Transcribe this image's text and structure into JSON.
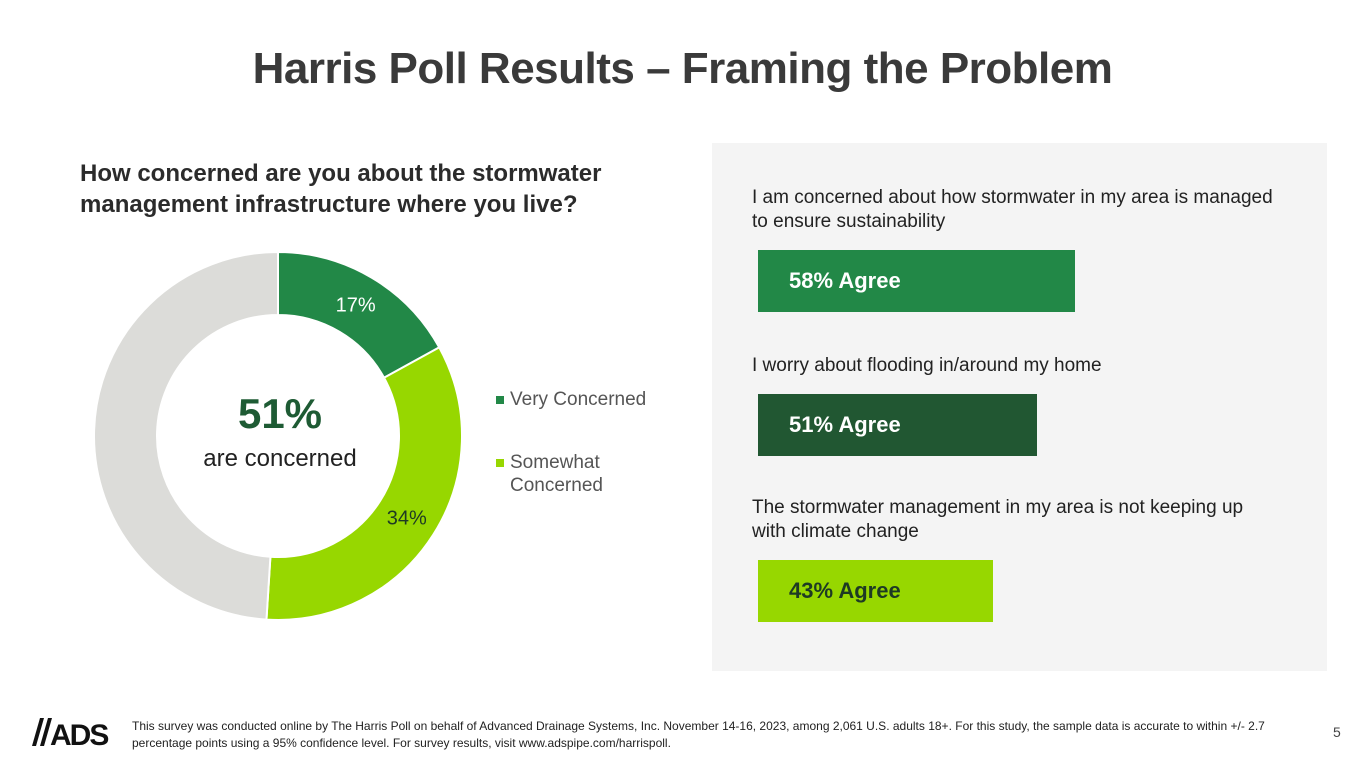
{
  "title": "Harris Poll Results – Framing the Problem",
  "question": "How concerned are you about the stormwater management infrastructure where you live?",
  "center": {
    "value": "51%",
    "label": "are concerned"
  },
  "legend": [
    {
      "label": "Very Concerned",
      "color": "#228847"
    },
    {
      "label": "Somewhat Concerned",
      "color": "#97d700"
    }
  ],
  "statements": [
    {
      "text": "I am concerned about how stormwater in my area is managed to ensure sustainability",
      "bar_label": "58% Agree",
      "value": 58,
      "color": "#228847"
    },
    {
      "text": "I worry about flooding in/around my home",
      "bar_label": "51% Agree",
      "value": 51,
      "color": "#215732"
    },
    {
      "text": "The stormwater management in my area is not keeping up with climate change",
      "bar_label": "43% Agree",
      "value": 43,
      "color": "#97d700"
    }
  ],
  "chart_data": [
    {
      "type": "pie",
      "donut": true,
      "categories": [
        "Very Concerned",
        "Somewhat Concerned",
        ""
      ],
      "values": [
        17,
        34,
        49
      ],
      "data_labels": [
        "17%",
        "34%",
        ""
      ],
      "colors": [
        "#228847",
        "#97d700",
        "#dcdcd9"
      ]
    },
    {
      "type": "bar",
      "orientation": "horizontal",
      "categories": [
        "I am concerned about how stormwater in my area is managed to ensure sustainability",
        "I worry about flooding in/around my home",
        "The stormwater management in my area is not keeping up with climate change"
      ],
      "values": [
        58,
        51,
        43
      ],
      "data_labels": [
        "58% Agree",
        "51% Agree",
        "43% Agree"
      ],
      "xlim": [
        0,
        100
      ]
    }
  ],
  "footer": {
    "logo_text": "ADS",
    "note": "This survey was conducted online by The Harris Poll on behalf of Advanced Drainage Systems, Inc. November 14-16, 2023, among 2,061 U.S. adults 18+. For this study, the sample data is accurate to within +/- 2.7 percentage points using a 95% confidence level. For survey results, visit www.adspipe.com/harrispoll.",
    "page_number": "5"
  }
}
